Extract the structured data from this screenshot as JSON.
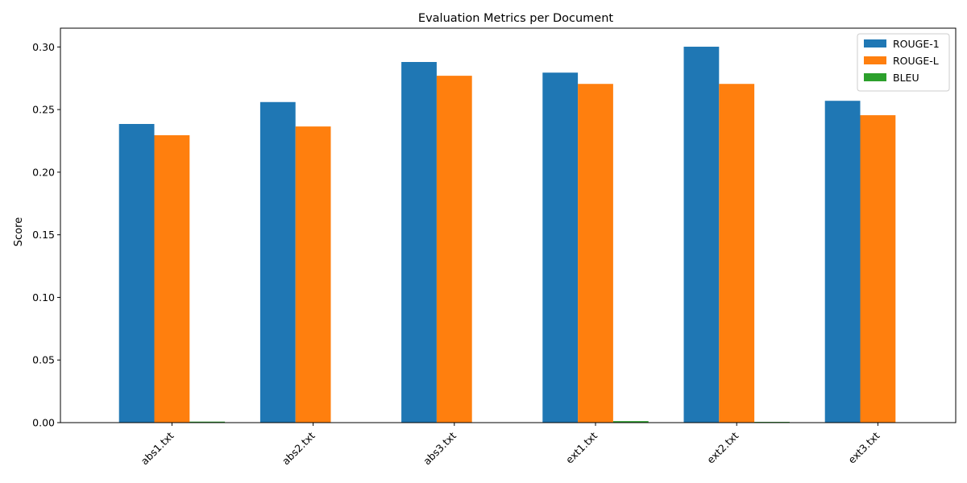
{
  "chart_data": {
    "type": "bar",
    "title": "Evaluation Metrics per Document",
    "xlabel": "",
    "ylabel": "Score",
    "categories": [
      "abs1.txt",
      "abs2.txt",
      "abs3.txt",
      "ext1.txt",
      "ext2.txt",
      "ext3.txt"
    ],
    "series": [
      {
        "name": "ROUGE-1",
        "color": "#1f77b4",
        "values": [
          0.2385,
          0.256,
          0.288,
          0.2795,
          0.3002,
          0.257
        ]
      },
      {
        "name": "ROUGE-L",
        "color": "#ff7f0e",
        "values": [
          0.2295,
          0.2365,
          0.277,
          0.2705,
          0.2705,
          0.2455
        ]
      },
      {
        "name": "BLEU",
        "color": "#2ca02c",
        "values": [
          0.0008,
          0.0002,
          0.0001,
          0.0012,
          0.0006,
          0.0001
        ]
      }
    ],
    "ylim": [
      0,
      0.315
    ],
    "yticks": [
      "0.00",
      "0.05",
      "0.10",
      "0.15",
      "0.20",
      "0.25",
      "0.30"
    ],
    "legend_position": "top-right",
    "grid": false
  }
}
